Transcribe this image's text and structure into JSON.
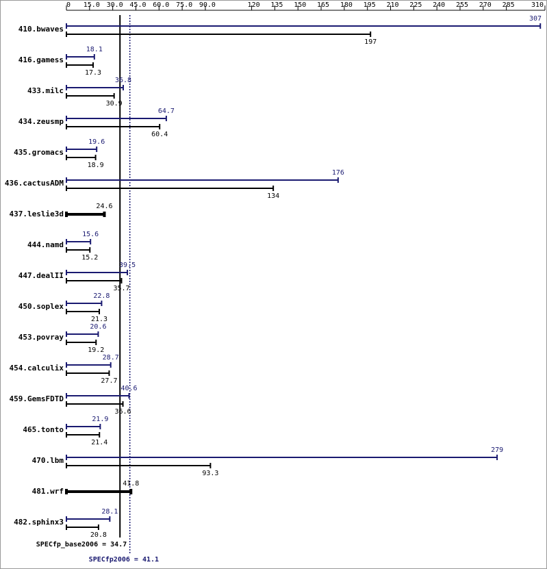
{
  "chart_data": {
    "type": "bar",
    "orientation": "horizontal",
    "categories": [
      "410.bwaves",
      "416.gamess",
      "433.milc",
      "434.zeusmp",
      "435.gromacs",
      "436.cactusADM",
      "437.leslie3d",
      "444.namd",
      "447.dealII",
      "450.soplex",
      "453.povray",
      "454.calculix",
      "459.GemsFDTD",
      "465.tonto",
      "470.lbm",
      "481.wrf",
      "482.sphinx3"
    ],
    "series": [
      {
        "color": "#191970",
        "values": [
          307,
          18.1,
          36.8,
          64.7,
          19.6,
          176,
          null,
          15.6,
          39.5,
          22.8,
          20.6,
          28.7,
          40.6,
          21.9,
          279,
          null,
          28.1
        ]
      },
      {
        "color": "#000000",
        "values": [
          197,
          17.3,
          30.9,
          60.4,
          18.9,
          134,
          24.6,
          15.2,
          35.7,
          21.3,
          19.2,
          27.7,
          36.6,
          21.4,
          93.3,
          41.8,
          20.8
        ]
      }
    ],
    "xlim": [
      0,
      310
    ],
    "xticks": [
      0,
      {
        "value": 15,
        "label": "15.0"
      },
      {
        "value": 30,
        "label": "30.0"
      },
      {
        "value": 45,
        "label": "45.0"
      },
      {
        "value": 60,
        "label": "60.0"
      },
      {
        "value": 75,
        "label": "75.0"
      },
      {
        "value": 90,
        "label": "90.0"
      },
      120,
      135,
      150,
      165,
      180,
      195,
      210,
      225,
      240,
      255,
      270,
      285,
      310
    ],
    "reference_lines": [
      {
        "value": 34.7,
        "label": "SPECfp_base2006 = 34.7",
        "color": "#000000",
        "style": "solid"
      },
      {
        "value": 41.1,
        "label": "SPECfp2006 = 41.1",
        "color": "#191970",
        "style": "dotted"
      }
    ]
  }
}
